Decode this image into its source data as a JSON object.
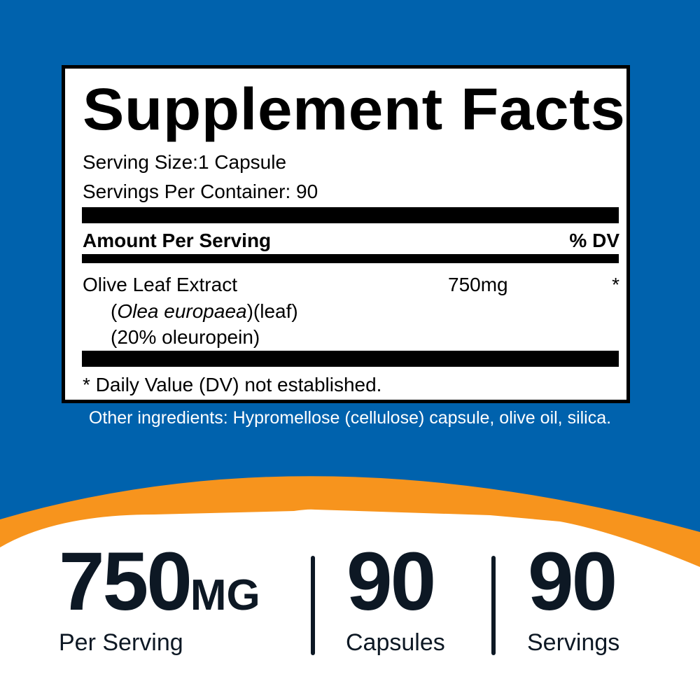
{
  "colors": {
    "background_blue": "#0062ad",
    "accent_orange": "#f7941d",
    "text_dark": "#0d1824"
  },
  "facts": {
    "title": "Supplement Facts",
    "serving_size": "Serving Size:1 Capsule",
    "servings_per_container": "Servings Per Container: 90",
    "amount_header": "Amount Per Serving",
    "dv_header": "% DV",
    "ingredient": {
      "name": "Olive Leaf Extract",
      "latin_open": "(",
      "latin": "Olea europaea",
      "latin_rest": ")(leaf)",
      "standardization": "(20% oleuropein)",
      "amount": "750mg",
      "dv": "*"
    },
    "footnote": "* Daily Value (DV) not established."
  },
  "other_ingredients": "Other ingredients: Hypromellose (cellulose) capsule, olive oil, silica.",
  "stats": [
    {
      "value": "750",
      "unit": "MG",
      "label": "Per Serving"
    },
    {
      "value": "90",
      "label": "Capsules"
    },
    {
      "value": "90",
      "label": "Servings"
    }
  ]
}
